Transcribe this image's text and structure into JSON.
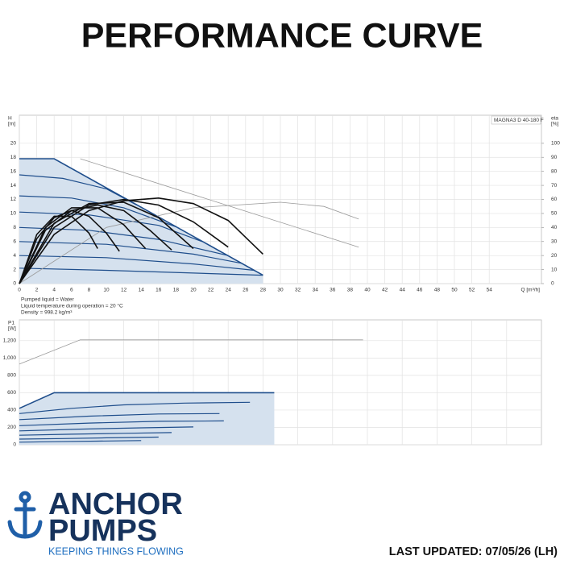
{
  "page_title": "PERFORMANCE CURVE",
  "brand": {
    "name": [
      "ANCHOR",
      "PUMPS"
    ],
    "tagline": "KEEPING THINGS FLOWING"
  },
  "footer": "LAST UPDATED: 07/05/26 (LH)",
  "chart_data": [
    {
      "type": "line",
      "ylabel": [
        "H",
        "[m]"
      ],
      "y2label": [
        "eta",
        "[%]"
      ],
      "xlabel": "Q [m³/h]",
      "annotations": [
        "MAGNA3 D 40-180 F"
      ],
      "notes": [
        "Pumped liquid = Water",
        "Liquid temperature during operation = 20 °C",
        "Density = 998.2 kg/m³"
      ],
      "xlim": [
        0,
        60
      ],
      "xticks": [
        0,
        2,
        4,
        6,
        8,
        10,
        12,
        14,
        16,
        18,
        20,
        22,
        24,
        26,
        28,
        30,
        32,
        34,
        36,
        38,
        40,
        42,
        44,
        46,
        48,
        50,
        52,
        54
      ],
      "xtick_labels": true,
      "ylim": [
        0,
        24
      ],
      "yticks": [
        0,
        2,
        4,
        6,
        8,
        10,
        12,
        14,
        16,
        18,
        20
      ],
      "y2lim": [
        0,
        120
      ],
      "y2ticks": [
        0,
        10,
        20,
        30,
        40,
        50,
        60,
        70,
        80,
        90,
        100
      ],
      "grid": true,
      "series": [
        {
          "x": [
            0,
            4,
            28
          ],
          "values": [
            17.8,
            17.8,
            1.2
          ],
          "color": "#1f4e8c",
          "area": "#d5e1ee",
          "width": 1.6
        },
        {
          "x": [
            7,
            39
          ],
          "values": [
            17.8,
            5.2
          ],
          "color": "#9a9a9a",
          "width": 0.8
        },
        {
          "x": [
            0,
            5,
            10,
            13.5
          ],
          "values": [
            15.5,
            15,
            13.5,
            11.2
          ],
          "color": "#1f4e8c",
          "width": 1.2
        },
        {
          "x": [
            0,
            6,
            12,
            18
          ],
          "values": [
            12.5,
            12.2,
            10.8,
            8.1
          ],
          "color": "#1f4e8c",
          "width": 1.2
        },
        {
          "x": [
            0,
            8,
            16,
            21
          ],
          "values": [
            10.2,
            9.8,
            8.3,
            6.0
          ],
          "color": "#1f4e8c",
          "width": 1.2
        },
        {
          "x": [
            0,
            8,
            16,
            24
          ],
          "values": [
            8,
            7.6,
            6.3,
            4.0
          ],
          "color": "#1f4e8c",
          "width": 1.2
        },
        {
          "x": [
            0,
            10,
            20,
            25.5
          ],
          "values": [
            6,
            5.6,
            4.2,
            2.9
          ],
          "color": "#1f4e8c",
          "width": 1.2
        },
        {
          "x": [
            0,
            10,
            20,
            27
          ],
          "values": [
            4,
            3.7,
            2.8,
            1.9
          ],
          "color": "#1f4e8c",
          "width": 1.2
        },
        {
          "x": [
            0,
            10,
            20,
            28
          ],
          "values": [
            2.2,
            1.9,
            1.5,
            1.2
          ],
          "color": "#1f4e8c",
          "width": 1.2
        },
        {
          "x": [
            0,
            10,
            20,
            30,
            35,
            39
          ],
          "values": [
            0,
            40,
            54,
            58,
            55,
            46
          ],
          "color": "#9a9a9a",
          "width": 0.8,
          "axis": "y2"
        },
        {
          "x": [
            0,
            4,
            8,
            12,
            16,
            20,
            24,
            28
          ],
          "values": [
            0,
            35,
            52,
            59,
            61,
            57,
            45,
            21
          ],
          "color": "#111111",
          "width": 1.6,
          "axis": "y2"
        },
        {
          "x": [
            0,
            4,
            8,
            12,
            16,
            20,
            24
          ],
          "values": [
            0,
            40,
            56,
            60,
            56,
            44,
            26
          ],
          "color": "#111111",
          "width": 1.6,
          "axis": "y2"
        },
        {
          "x": [
            0,
            4,
            8,
            12,
            16,
            20
          ],
          "values": [
            0,
            43,
            57,
            58,
            47,
            25
          ],
          "color": "#111111",
          "width": 1.6,
          "axis": "y2"
        },
        {
          "x": [
            0,
            3,
            6,
            9,
            12,
            15,
            17.5
          ],
          "values": [
            0,
            38,
            52,
            56,
            52,
            38,
            24
          ],
          "color": "#111111",
          "width": 1.6,
          "axis": "y2"
        },
        {
          "x": [
            0,
            3,
            6,
            9,
            12,
            14.5
          ],
          "values": [
            0,
            40,
            54,
            54,
            42,
            25
          ],
          "color": "#111111",
          "width": 1.6,
          "axis": "y2"
        },
        {
          "x": [
            0,
            2,
            4,
            6,
            8,
            10,
            11.5
          ],
          "values": [
            0,
            32,
            47,
            52,
            48,
            36,
            23
          ],
          "color": "#111111",
          "width": 1.6,
          "axis": "y2"
        },
        {
          "x": [
            0,
            2,
            4,
            6,
            8,
            9
          ],
          "values": [
            0,
            35,
            48,
            48,
            36,
            25
          ],
          "color": "#111111",
          "width": 1.6,
          "axis": "y2"
        }
      ]
    },
    {
      "type": "line",
      "ylabel": [
        "P1",
        "[W]"
      ],
      "xlim": [
        0,
        60
      ],
      "xticks": [
        0,
        4,
        8,
        12,
        16,
        20,
        24,
        28,
        32,
        36,
        40,
        44,
        48,
        52,
        56
      ],
      "xtick_labels": false,
      "ylim": [
        0,
        1440
      ],
      "yticks": [
        0,
        200,
        400,
        600,
        800,
        {
          "value": 1000,
          "label": "1,000"
        },
        {
          "value": 1200,
          "label": "1,200"
        }
      ],
      "grid": true,
      "series": [
        {
          "x": [
            0,
            4,
            29.3
          ],
          "values": [
            420,
            600,
            600
          ],
          "color": "#1f4e8c",
          "area": "#d5e1ee",
          "width": 1.6
        },
        {
          "x": [
            0,
            7,
            39.5
          ],
          "values": [
            930,
            1210,
            1210
          ],
          "color": "#9a9a9a",
          "width": 0.8
        },
        {
          "x": [
            0,
            6,
            12,
            19,
            26.5
          ],
          "values": [
            360,
            420,
            460,
            480,
            490
          ],
          "color": "#1f4e8c",
          "width": 1.2
        },
        {
          "x": [
            0,
            8,
            16,
            23
          ],
          "values": [
            290,
            330,
            355,
            360
          ],
          "color": "#1f4e8c",
          "width": 1.2
        },
        {
          "x": [
            0,
            8,
            16,
            23.5
          ],
          "values": [
            220,
            250,
            270,
            275
          ],
          "color": "#1f4e8c",
          "width": 1.2
        },
        {
          "x": [
            0,
            7,
            14,
            20
          ],
          "values": [
            160,
            180,
            195,
            205
          ],
          "color": "#1f4e8c",
          "width": 1.2
        },
        {
          "x": [
            0,
            6,
            12,
            17.5
          ],
          "values": [
            110,
            122,
            132,
            140
          ],
          "color": "#1f4e8c",
          "width": 1.2
        },
        {
          "x": [
            0,
            5,
            10,
            16
          ],
          "values": [
            65,
            72,
            80,
            88
          ],
          "color": "#1f4e8c",
          "width": 1.2
        },
        {
          "x": [
            0,
            4,
            9,
            14
          ],
          "values": [
            30,
            35,
            42,
            48
          ],
          "color": "#1f4e8c",
          "width": 1.2
        }
      ]
    }
  ]
}
